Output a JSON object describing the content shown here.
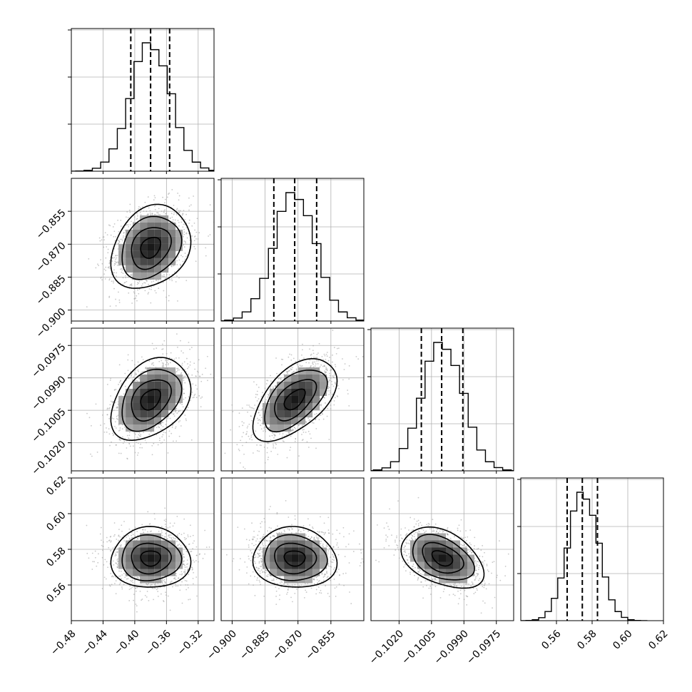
{
  "chart_data": {
    "type": "corner",
    "title": "",
    "parameters": [
      {
        "range": [
          -0.48,
          -0.3
        ],
        "ticks": [
          -0.48,
          -0.44,
          -0.4,
          -0.36,
          -0.32
        ],
        "tick_labels": [
          "−0.48",
          "−0.44",
          "−0.40",
          "−0.36",
          "−0.32"
        ],
        "mean": -0.38,
        "sd": 0.025,
        "quantiles": [
          -0.405,
          -0.38,
          -0.356
        ]
      },
      {
        "range": [
          -0.905,
          -0.84
        ],
        "ticks": [
          -0.9,
          -0.885,
          -0.87,
          -0.855
        ],
        "tick_labels": [
          "−0.900",
          "−0.885",
          "−0.870",
          "−0.855"
        ],
        "mean": -0.8715,
        "sd": 0.0095,
        "quantiles": [
          -0.881,
          -0.8715,
          -0.8615
        ]
      },
      {
        "range": [
          -0.1033,
          -0.0967
        ],
        "ticks": [
          -0.102,
          -0.1005,
          -0.099,
          -0.0975
        ],
        "tick_labels": [
          "−0.1020",
          "−0.1005",
          "−0.0990",
          "−0.0975"
        ],
        "mean": -0.1,
        "sd": 0.00095,
        "quantiles": [
          -0.10097,
          -0.10003,
          -0.09905
        ]
      },
      {
        "range": [
          0.54,
          0.62
        ],
        "ticks": [
          0.56,
          0.58,
          0.6,
          0.62
        ],
        "tick_labels": [
          "0.56",
          "0.58",
          "0.60",
          "0.62"
        ],
        "mean": 0.575,
        "sd": 0.0085,
        "quantiles": [
          0.566,
          0.5745,
          0.583
        ]
      }
    ],
    "correlations": [
      {
        "pair": [
          0,
          1
        ],
        "r": 0.25
      },
      {
        "pair": [
          0,
          2
        ],
        "r": 0.35
      },
      {
        "pair": [
          1,
          2
        ],
        "r": 0.55
      },
      {
        "pair": [
          0,
          3
        ],
        "r": 0.0
      },
      {
        "pair": [
          1,
          3
        ],
        "r": -0.05
      },
      {
        "pair": [
          2,
          3
        ],
        "r": -0.4
      }
    ],
    "histogram_bins": 20,
    "contour_levels": [
      0.5,
      1.0,
      1.5,
      2.0
    ],
    "samples_shown_as_points": true,
    "grid": true,
    "colors": {
      "line": "#000000",
      "points": "#9a9a9a",
      "grid": "#b0b0b0"
    }
  }
}
